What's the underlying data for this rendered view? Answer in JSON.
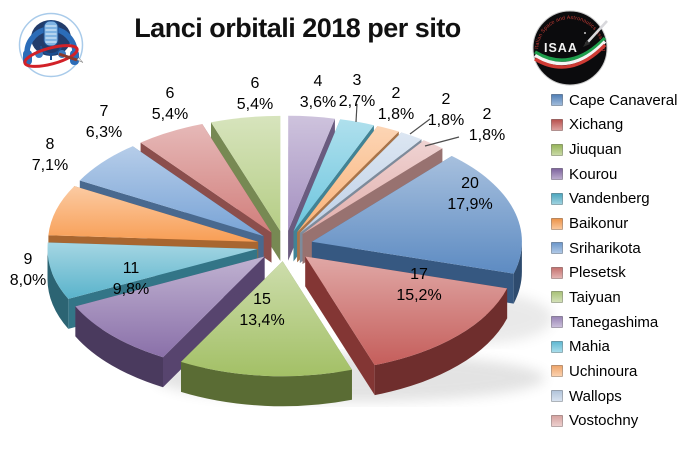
{
  "title": "Lanci orbitali 2018 per sito",
  "logos": {
    "right_text": "ISAA",
    "right_ring_text": "Italian Space and Astronautics Association"
  },
  "chart_data": {
    "type": "pie",
    "title": "Lanci orbitali 2018 per sito",
    "style": "3d-exploded",
    "legend_position": "right",
    "label_format": "value and percent",
    "slices": [
      {
        "label": "Cape Canaveral",
        "value": 20,
        "pct": "17,9%",
        "color": "#4F81BD"
      },
      {
        "label": "Xichang",
        "value": 17,
        "pct": "15,2%",
        "color": "#C0504D"
      },
      {
        "label": "Jiuquan",
        "value": 15,
        "pct": "13,4%",
        "color": "#9BBB59"
      },
      {
        "label": "Kourou",
        "value": 11,
        "pct": "9,8%",
        "color": "#8064A2"
      },
      {
        "label": "Vandenberg",
        "value": 9,
        "pct": "8,0%",
        "color": "#4BACC6"
      },
      {
        "label": "Baikonur",
        "value": 8,
        "pct": "7,1%",
        "color": "#F79646"
      },
      {
        "label": "Sriharikota",
        "value": 7,
        "pct": "6,3%",
        "color": "#6C9BD2"
      },
      {
        "label": "Plesetsk",
        "value": 6,
        "pct": "5,4%",
        "color": "#CD7370"
      },
      {
        "label": "Taiyuan",
        "value": 6,
        "pct": "5,4%",
        "color": "#AFC97A"
      },
      {
        "label": "Tanegashima",
        "value": 4,
        "pct": "3,6%",
        "color": "#9C86BB"
      },
      {
        "label": "Mahia",
        "value": 3,
        "pct": "2,7%",
        "color": "#5FC0DB"
      },
      {
        "label": "Uchinoura",
        "value": 2,
        "pct": "1,8%",
        "color": "#F9AB6B"
      },
      {
        "label": "Wallops",
        "value": 2,
        "pct": "1,8%",
        "color": "#B8CCE4"
      },
      {
        "label": "Vostochny",
        "value": 2,
        "pct": "1,8%",
        "color": "#DFA7A4"
      }
    ]
  }
}
